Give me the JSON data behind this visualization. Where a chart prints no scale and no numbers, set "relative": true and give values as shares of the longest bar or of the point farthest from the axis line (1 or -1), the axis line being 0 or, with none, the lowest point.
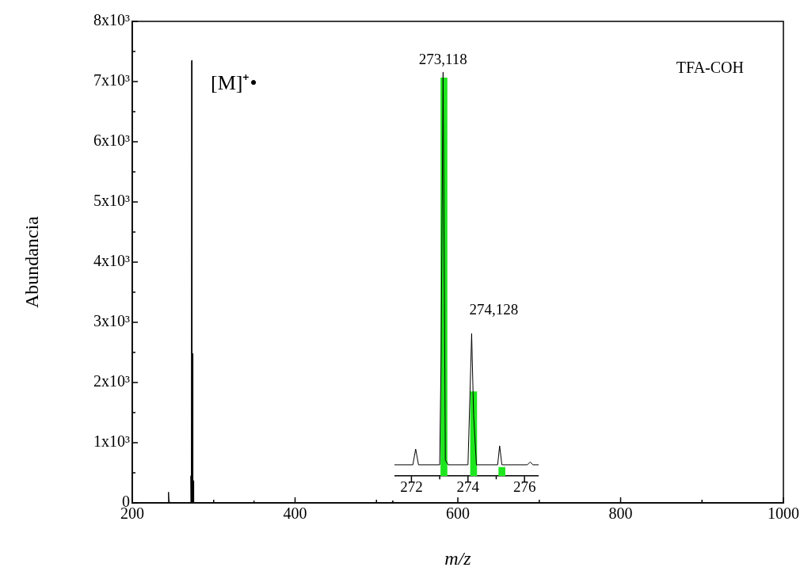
{
  "chart_data": [
    {
      "type": "line",
      "xlabel": "m/z",
      "ylabel": "Abundancia",
      "xlim": [
        200,
        1000
      ],
      "ylim": [
        0,
        8000
      ],
      "xticks": [
        200,
        {
          "value": 300,
          "label": null
        },
        400,
        {
          "value": 500,
          "label": null
        },
        600,
        {
          "value": 700,
          "label": null
        },
        800,
        {
          "value": 900,
          "label": null
        },
        1000
      ],
      "yticks": [
        0,
        {
          "value": 500,
          "label": null
        },
        {
          "value": 1000,
          "label": "1x10³"
        },
        {
          "value": 1500,
          "label": null
        },
        {
          "value": 2000,
          "label": "2x10³"
        },
        {
          "value": 2500,
          "label": null
        },
        {
          "value": 3000,
          "label": "3x10³"
        },
        {
          "value": 3500,
          "label": null
        },
        {
          "value": 4000,
          "label": "4x10³"
        },
        {
          "value": 4500,
          "label": null
        },
        {
          "value": 5000,
          "label": "5x10³"
        },
        {
          "value": 5500,
          "label": null
        },
        {
          "value": 6000,
          "label": "6x10³"
        },
        {
          "value": 6500,
          "label": null
        },
        {
          "value": 7000,
          "label": "7x10³"
        },
        {
          "value": 7500,
          "label": null
        },
        {
          "value": 8000,
          "label": "8x10³"
        }
      ],
      "marker": "none",
      "legend": false,
      "series": [
        {
          "color": "#000000",
          "x": [
            200,
            244,
            244.5,
            245,
            246,
            271.5,
            272,
            272.5,
            273,
            273.5,
            274,
            274.5,
            275,
            275.5,
            349,
            349.5,
            350,
            519,
            520,
            521,
            1000
          ],
          "values": [
            0,
            0,
            180,
            60,
            0,
            0,
            450,
            0,
            7350,
            0,
            2480,
            0,
            370,
            0,
            0,
            40,
            0,
            0,
            40,
            0,
            0
          ]
        }
      ],
      "annotations": [
        "TFA-COH",
        {
          "text": "[M]⁺•",
          "x": 273,
          "y": 7350
        }
      ]
    },
    {
      "type": "line",
      "relative": true,
      "xlim": [
        271.4,
        276.5
      ],
      "xticks": [
        272,
        {
          "value": 273,
          "label": null
        },
        274,
        {
          "value": 275,
          "label": null
        },
        276
      ],
      "tick_labels": "x",
      "marker": "none",
      "legend": false,
      "series": [
        {
          "type": "line",
          "color": "#000000",
          "x": [
            271.4,
            272.05,
            272.15,
            272.25,
            273.0,
            273.05,
            273.12,
            273.2,
            273.3,
            274.0,
            274.07,
            274.13,
            274.2,
            274.3,
            275.05,
            275.12,
            275.2,
            276.1,
            276.2,
            276.3,
            276.5
          ],
          "values": [
            0.028,
            0.028,
            0.067,
            0.028,
            0.028,
            0.3,
            1.0,
            0.04,
            0.028,
            0.028,
            0.2,
            0.353,
            0.15,
            0.028,
            0.028,
            0.075,
            0.028,
            0.028,
            0.035,
            0.028,
            0.028
          ]
        },
        {
          "type": "bar",
          "color": "#1ee61e",
          "x": [
            273.15,
            274.2,
            275.2
          ],
          "values": [
            0.986,
            0.209,
            0.022
          ]
        }
      ],
      "annotations": [
        {
          "text": "273,118",
          "x": 273.118,
          "y": 1.0
        },
        {
          "text": "274,128",
          "x": 274.128,
          "y": 0.353
        }
      ]
    }
  ]
}
